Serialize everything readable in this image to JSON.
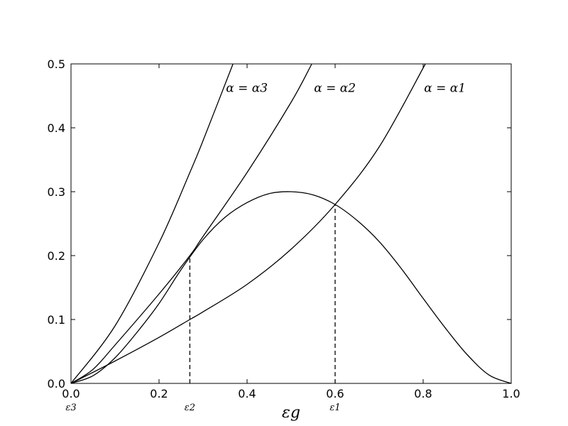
{
  "chart_data": {
    "type": "line",
    "x_label": "εg",
    "xlim": [
      0,
      1
    ],
    "ylim": [
      0,
      0.5
    ],
    "xticks": [
      {
        "value": 0,
        "label": "0.0"
      },
      {
        "value": 0.2,
        "label": "0.2"
      },
      {
        "value": 0.4,
        "label": "0.4"
      },
      {
        "value": 0.6,
        "label": "0.6"
      },
      {
        "value": 0.8,
        "label": "0.8"
      },
      {
        "value": 1,
        "label": "1.0"
      }
    ],
    "yticks": [
      {
        "value": 0,
        "label": "0.0"
      },
      0.1,
      0.2,
      0.3,
      0.4,
      0.5
    ],
    "series": [
      {
        "color": "#000000",
        "x": [
          0,
          0.05,
          0.1,
          0.15,
          0.2,
          0.25,
          0.3,
          0.35,
          0.4,
          0.45,
          0.5,
          0.55,
          0.6,
          0.65,
          0.7,
          0.75,
          0.8,
          0.85,
          0.9,
          0.95,
          1
        ],
        "values": [
          0,
          0.012,
          0.04,
          0.08,
          0.125,
          0.178,
          0.225,
          0.26,
          0.283,
          0.297,
          0.3,
          0.295,
          0.28,
          0.255,
          0.222,
          0.18,
          0.133,
          0.087,
          0.045,
          0.013,
          0
        ]
      },
      {
        "color": "#000000",
        "x": [
          0,
          0.1,
          0.2,
          0.27,
          0.3,
          0.4,
          0.5,
          0.6,
          0.7,
          0.805
        ],
        "values": [
          0,
          0.035,
          0.072,
          0.1,
          0.112,
          0.155,
          0.21,
          0.28,
          0.37,
          0.5
        ]
      },
      {
        "color": "#000000",
        "x": [
          0,
          0.05,
          0.1,
          0.2,
          0.27,
          0.3,
          0.4,
          0.5,
          0.547
        ],
        "values": [
          0,
          0.022,
          0.06,
          0.14,
          0.2,
          0.23,
          0.33,
          0.44,
          0.5
        ]
      },
      {
        "color": "#000000",
        "x": [
          0,
          0.1,
          0.2,
          0.27,
          0.3,
          0.368
        ],
        "values": [
          0,
          0.09,
          0.22,
          0.33,
          0.38,
          0.5
        ]
      }
    ],
    "markers": [
      {
        "x": 0,
        "label": "ε3"
      },
      {
        "x": 0.27,
        "y": 0.2,
        "label": "ε2"
      },
      {
        "x": 0.6,
        "y": 0.28,
        "label": "ε1"
      }
    ],
    "annotations": [
      {
        "text": "α = α3",
        "x": 0.352,
        "y": 0.456
      },
      {
        "text": "α = α2",
        "x": 0.552,
        "y": 0.456
      },
      {
        "text": "α = α1",
        "x": 0.802,
        "y": 0.456
      }
    ]
  }
}
